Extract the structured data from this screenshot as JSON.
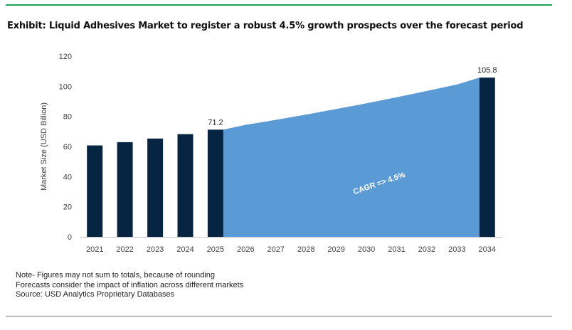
{
  "header": {
    "title": "Exhibit: Liquid Adhesives Market to register a robust 4.5% growth prospects over the forecast period"
  },
  "notes": [
    "Note- Figures may not sum to totals, because of rounding",
    "Forecasts consider the impact of inflation across different markets",
    "Source: USD Analytics Proprietary Databases"
  ],
  "colors": {
    "bar": "#062543",
    "area": "#5b9bd5",
    "rule": "#1f9e57"
  },
  "chart_data": {
    "type": "bar",
    "categories": [
      "2021",
      "2022",
      "2023",
      "2024",
      "2025",
      "2026",
      "2027",
      "2028",
      "2029",
      "2030",
      "2031",
      "2032",
      "2033",
      "2034"
    ],
    "values": [
      60.7,
      62.9,
      65.3,
      68.2,
      71.2,
      null,
      null,
      null,
      null,
      null,
      null,
      null,
      null,
      105.8
    ],
    "area_values": [
      71.2,
      74.4,
      77.7,
      81.2,
      84.9,
      88.7,
      92.7,
      96.9,
      101.2,
      105.8
    ],
    "area_categories": [
      "2025",
      "2026",
      "2027",
      "2028",
      "2029",
      "2030",
      "2031",
      "2032",
      "2033",
      "2034"
    ],
    "data_labels": [
      {
        "category": "2025",
        "text": "71.2"
      },
      {
        "category": "2034",
        "text": "105.8"
      }
    ],
    "annotation": "CAGR => 4.5%",
    "ylabel": "Market Size (USD Billion)",
    "xlabel": "",
    "ylim": [
      0,
      120
    ],
    "yticks": [
      0,
      20,
      40,
      60,
      80,
      100,
      120
    ],
    "grid": false,
    "legend": "none"
  }
}
